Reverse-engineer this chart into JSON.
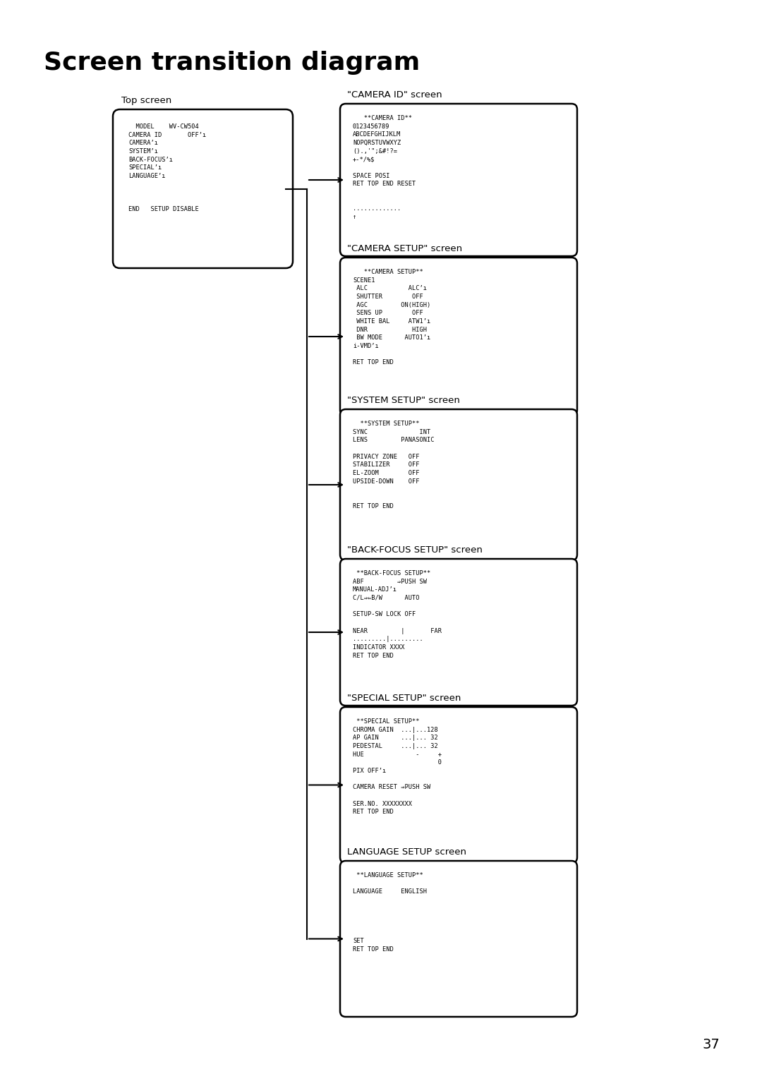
{
  "title": "Screen transition diagram",
  "title_fontsize": 26,
  "page_number": "37",
  "bg": "#ffffff",
  "fg": "#000000",
  "top_screen_label": "Top screen",
  "top_screen_content": "  MODEL    WV-CW504\nCAMERA ID       OFF’ı\nCAMERA’ı\nSYSTEM’ı\nBACK-FOCUS’ı\nSPECIAL’ı\nLANGUAGE’ı\n\n\n\nEND   SETUP DISABLE",
  "screens": [
    {
      "label": "\"CAMERA ID\" screen",
      "content": "   **CAMERA ID**\n0123456789\nABCDEFGHIJKLM\nNOPQRSTUVWXYZ\n().,'\";&#!?=\n+-*/%$\n\nSPACE POSI\nRET TOP END RESET\n\n\n.............\n↑"
    },
    {
      "label": "\"CAMERA SETUP\" screen",
      "content": "   **CAMERA SETUP**\nSCENE1\n ALC           ALC’ı\n SHUTTER        OFF\n AGC         ON(HIGH)\n SENS UP        OFF\n WHITE BAL     ATW1’ı\n DNR            HIGH\n BW MODE      AUTO1’ı\ni-VMD’ı\n\nRET TOP END"
    },
    {
      "label": "\"SYSTEM SETUP\" screen",
      "content": "  **SYSTEM SETUP**\nSYNC              INT\nLENS         PANASONIC\n\nPRIVACY ZONE   OFF\nSTABILIZER     OFF\nEL-ZOOM        OFF\nUPSIDE-DOWN    OFF\n\n\nRET TOP END"
    },
    {
      "label": "\"BACK-FOCUS SETUP\" screen",
      "content": " **BACK-FOCUS SETUP**\nABF         ⇒PUSH SW\nMANUAL-ADJ’ı\nC/L⇒⇐B/W      AUTO\n\nSETUP-SW LOCK OFF\n\nNEAR         |       FAR\n.........|.........\nINDICATOR XXXX\nRET TOP END"
    },
    {
      "label": "\"SPECIAL SETUP\" screen",
      "content": " **SPECIAL SETUP**\nCHROMA GAIN  ...|...128\nAP GAIN      ...|... 32\nPEDESTAL     ...|... 32\nHUE              -     +\n                       0\nPIX OFF’ı\n\nCAMERA RESET ⇒PUSH SW\n\nSER.NO. XXXXXXXX\nRET TOP END"
    },
    {
      "label": "LANGUAGE SETUP screen",
      "content": " **LANGUAGE SETUP**\n\nLANGUAGE     ENGLISH\n\n\n\n\n\nSET\nRET TOP END"
    }
  ]
}
